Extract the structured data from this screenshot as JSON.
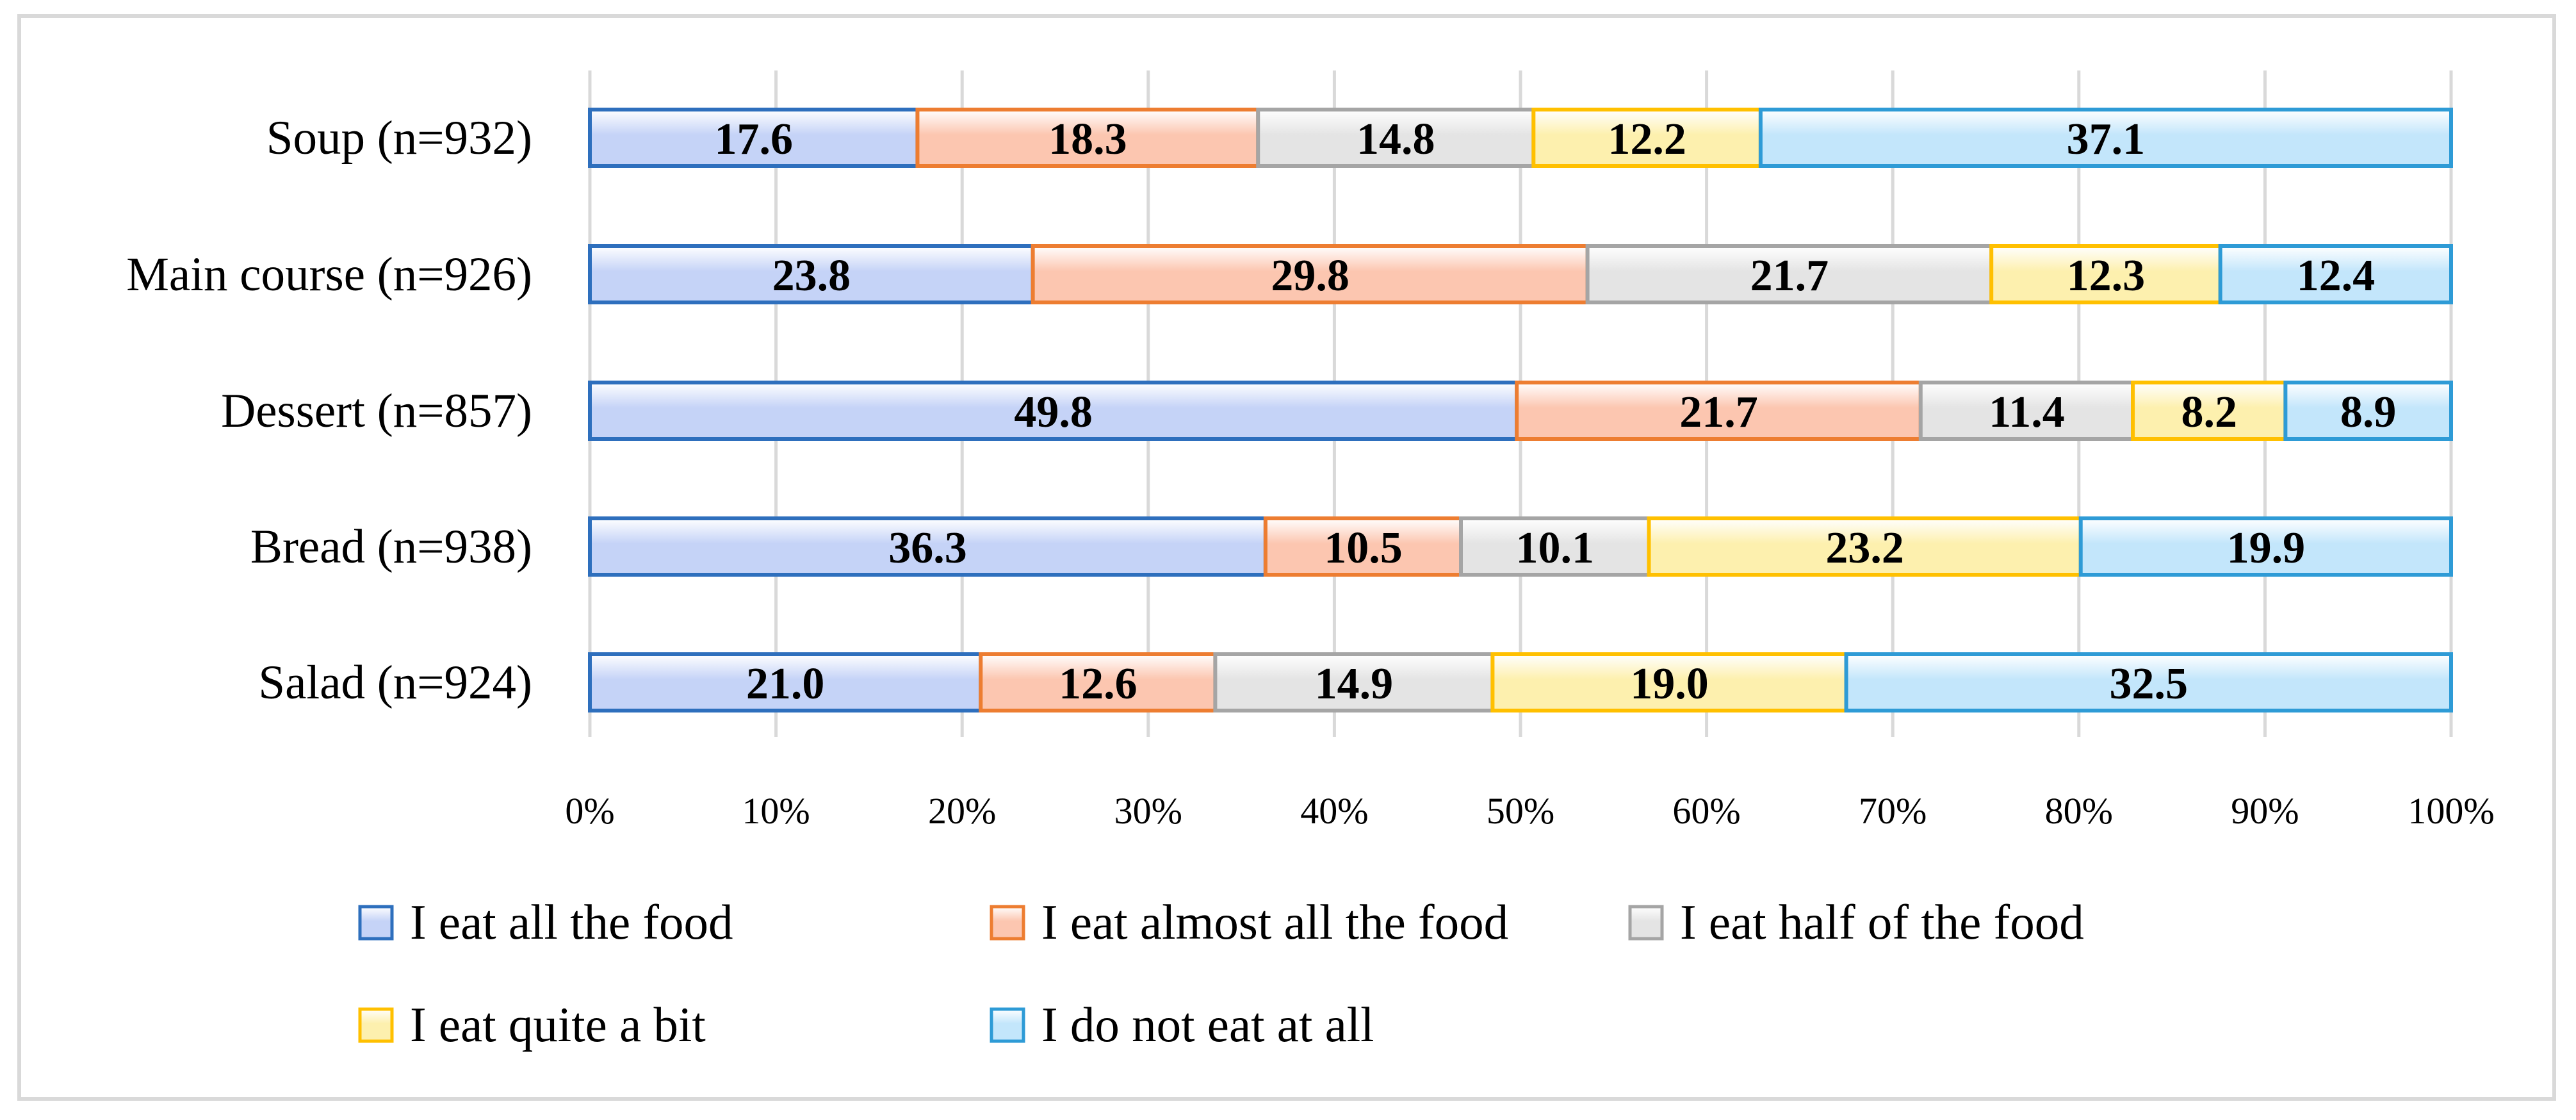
{
  "chart_data": {
    "type": "bar",
    "orientation": "horizontal",
    "stacked": "percent",
    "categories": [
      "Soup (n=932)",
      "Main course (n=926)",
      "Dessert (n=857)",
      "Bread (n=938)",
      "Salad (n=924)"
    ],
    "series": [
      {
        "name": "I eat all the food",
        "values": [
          17.6,
          23.8,
          49.8,
          36.3,
          21.0
        ],
        "labels": [
          "17.6",
          "23.8",
          "49.8",
          "36.3",
          "21.0"
        ],
        "fill": "#c5d3f7",
        "stroke": "#2e6fbd"
      },
      {
        "name": "I eat almost all the food",
        "values": [
          18.3,
          29.8,
          21.7,
          10.5,
          12.6
        ],
        "labels": [
          "18.3",
          "29.8",
          "21.7",
          "10.5",
          "12.6"
        ],
        "fill": "#fcc6b0",
        "stroke": "#ed7d31"
      },
      {
        "name": "I eat half of the food",
        "values": [
          14.8,
          21.7,
          11.4,
          10.1,
          14.9
        ],
        "labels": [
          "14.8",
          "21.7",
          "11.4",
          "10.1",
          "14.9"
        ],
        "fill": "#e4e4e4",
        "stroke": "#a5a5a5"
      },
      {
        "name": "I eat quite a bit",
        "values": [
          12.2,
          12.3,
          8.2,
          23.2,
          19.0
        ],
        "labels": [
          "12.2",
          "12.3",
          "8.2",
          "23.2",
          "19.0"
        ],
        "fill": "#fdf0ae",
        "stroke": "#ffc000"
      },
      {
        "name": "I do not eat at all",
        "values": [
          37.1,
          12.4,
          8.9,
          19.9,
          32.5
        ],
        "labels": [
          "37.1",
          "12.4",
          "8.9",
          "19.9",
          "32.5"
        ],
        "fill": "#c3e6fb",
        "stroke": "#2e9bd6"
      }
    ],
    "xlim": [
      0,
      100
    ],
    "xticks": [
      "0%",
      "10%",
      "20%",
      "30%",
      "40%",
      "50%",
      "60%",
      "70%",
      "80%",
      "90%",
      "100%"
    ],
    "grid": true,
    "legend_position": "bottom",
    "title": "",
    "xlabel": "",
    "ylabel": ""
  }
}
